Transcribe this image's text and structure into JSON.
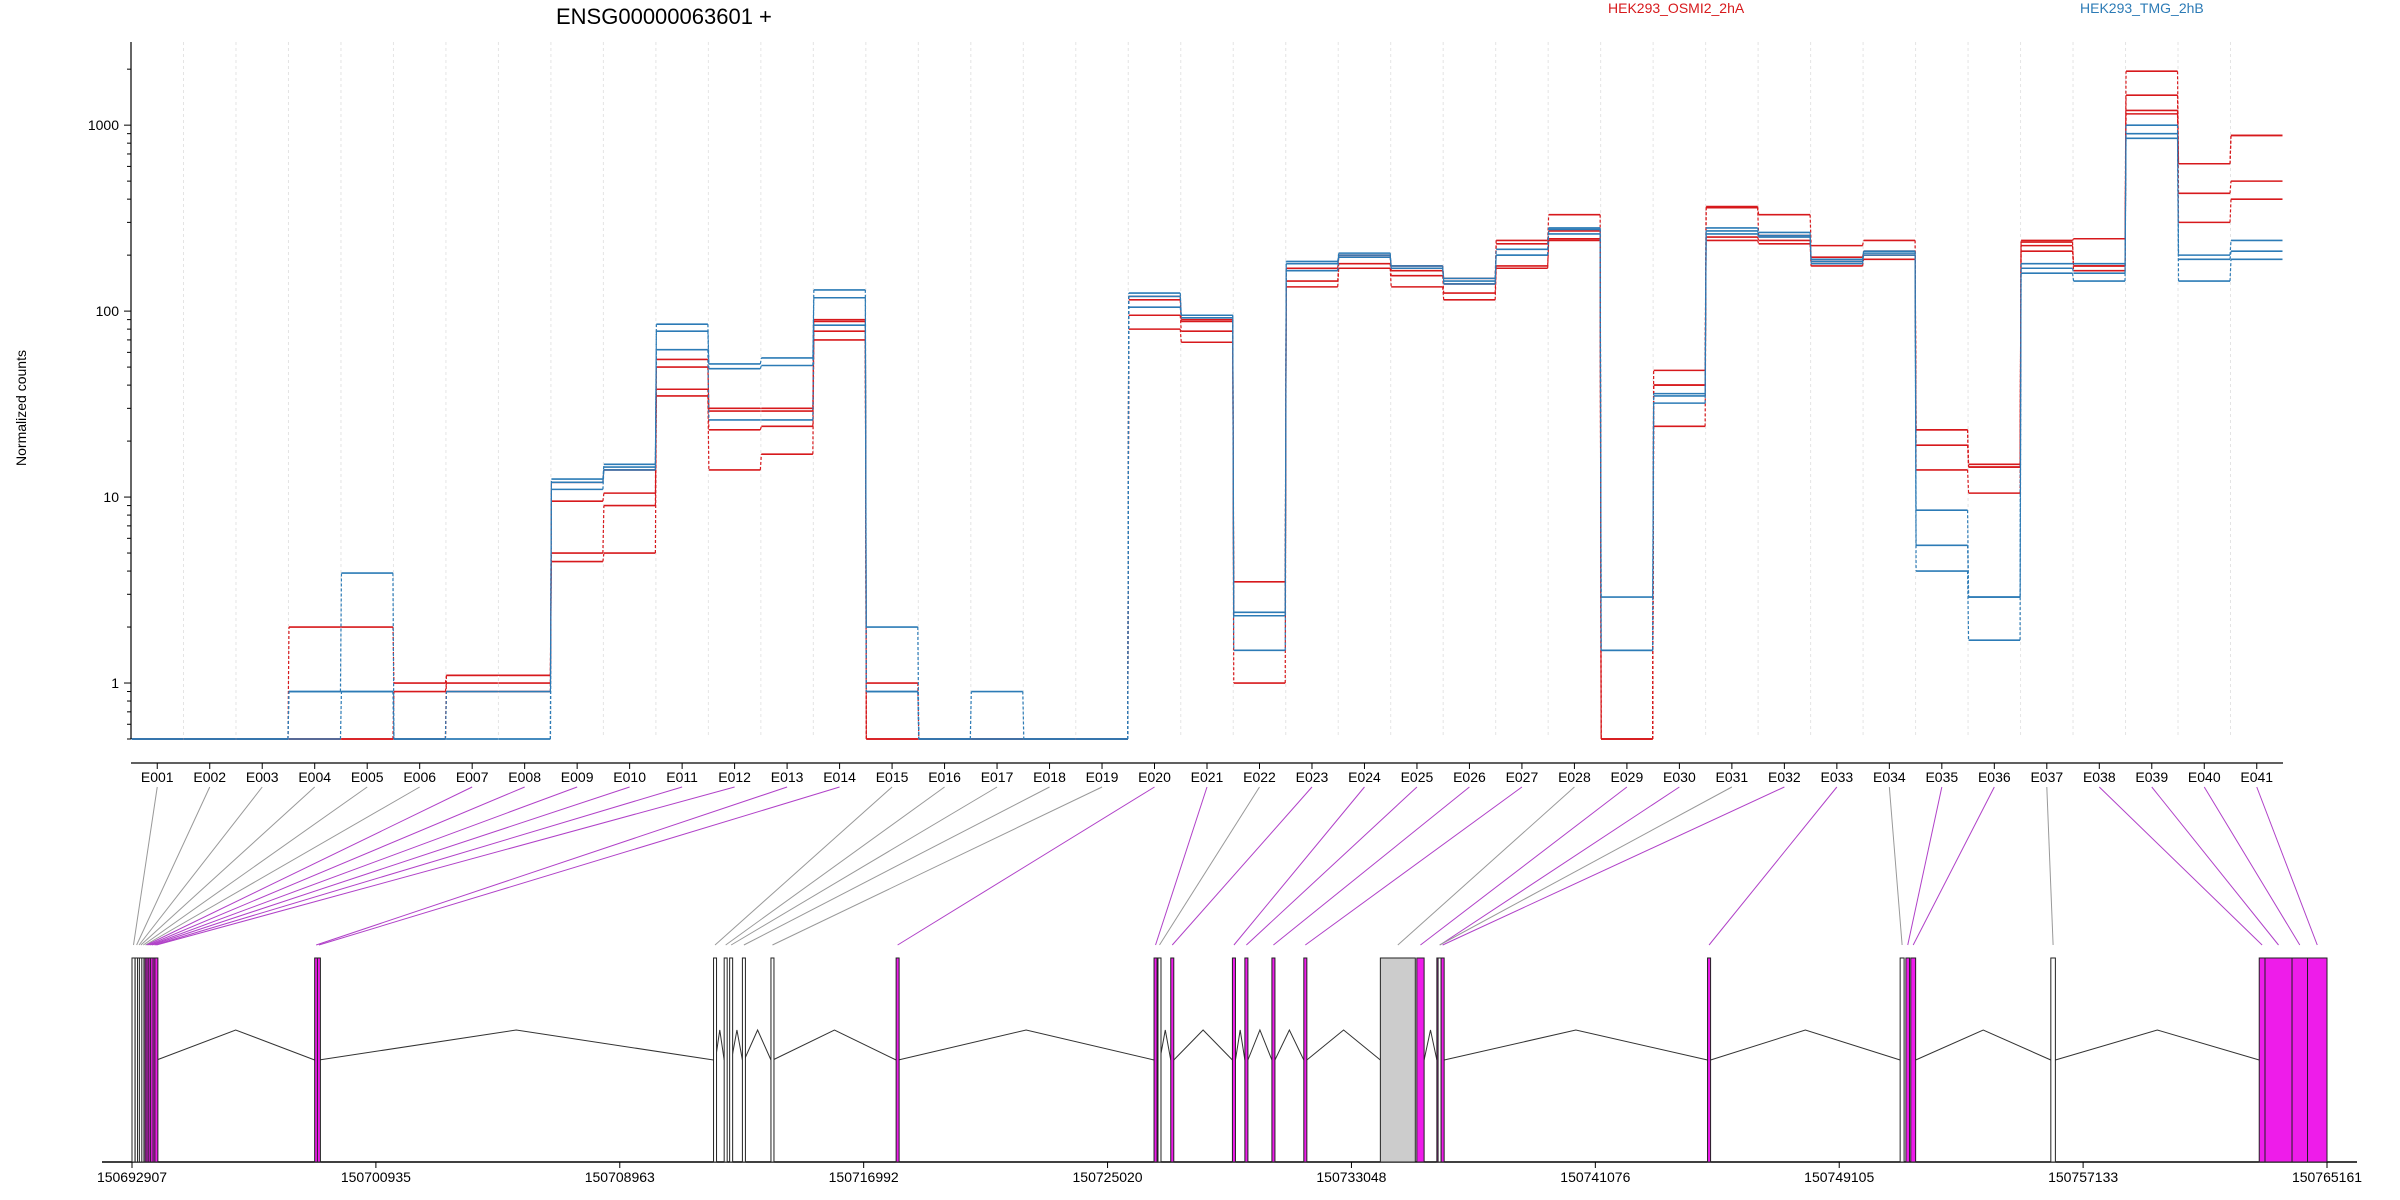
{
  "title": "ENSG00000063601 +",
  "legend": [
    {
      "name": "HEK293_OSMI2_2hA",
      "color": "#d7191c"
    },
    {
      "name": "HEK293_TMG_2hB",
      "color": "#2c7bb6"
    }
  ],
  "coord_labels": [
    "150692907",
    "150700935",
    "150708963",
    "150716992",
    "150725020",
    "150733048",
    "150741076",
    "150749105",
    "150757133",
    "150765161"
  ],
  "chart_data": {
    "type": "line",
    "title": "ENSG00000063601 +",
    "ylabel": "Normalized counts",
    "yscale": "log",
    "yticks": [
      1,
      10,
      100,
      1000
    ],
    "ylim": [
      0.5,
      2800
    ],
    "grid": "vertical dashed",
    "legend_position": "top",
    "categories": [
      "E001",
      "E002",
      "E003",
      "E004",
      "E005",
      "E006",
      "E007",
      "E008",
      "E009",
      "E010",
      "E011",
      "E012",
      "E013",
      "E014",
      "E015",
      "E016",
      "E017",
      "E018",
      "E019",
      "E020",
      "E021",
      "E022",
      "E023",
      "E024",
      "E025",
      "E026",
      "E027",
      "E028",
      "E029",
      "E030",
      "E031",
      "E032",
      "E033",
      "E034",
      "E035",
      "E036",
      "E037",
      "E038",
      "E039",
      "E040",
      "E041"
    ],
    "series": [
      {
        "group": "HEK293_OSMI2_2hA",
        "color": "#d7191c",
        "values": [
          0.5,
          0.5,
          0.5,
          2.0,
          2.0,
          1.0,
          1.1,
          1.1,
          4.5,
          5.0,
          35,
          14,
          17,
          70,
          1.0,
          0.5,
          0.5,
          0.5,
          0.5,
          80,
          68,
          1.0,
          135,
          170,
          135,
          115,
          170,
          240,
          0.5,
          24,
          240,
          230,
          175,
          190,
          14,
          10.5,
          210,
          165,
          1200,
          300,
          400
        ]
      },
      {
        "group": "HEK293_OSMI2_2hA",
        "color": "#d7191c",
        "values": [
          0.5,
          0.5,
          0.5,
          0.5,
          0.5,
          0.9,
          1.0,
          1.0,
          5.0,
          9.0,
          38,
          23,
          24,
          78,
          0.5,
          0.5,
          0.5,
          0.5,
          0.5,
          95,
          78,
          2.3,
          145,
          180,
          155,
          125,
          175,
          245,
          0.5,
          40,
          250,
          240,
          185,
          200,
          19,
          14.5,
          225,
          175,
          1450,
          430,
          500
        ]
      },
      {
        "group": "HEK293_OSMI2_2hA",
        "color": "#d7191c",
        "values": [
          0.5,
          0.5,
          0.5,
          0.5,
          0.5,
          0.5,
          1.1,
          1.1,
          9.5,
          10.5,
          50,
          29,
          29,
          88,
          0.5,
          0.5,
          0.5,
          0.5,
          0.5,
          115,
          88,
          3.5,
          165,
          195,
          165,
          140,
          230,
          270,
          0.5,
          48,
          360,
          255,
          195,
          210,
          23,
          14.5,
          235,
          175,
          1150,
          620,
          880
        ]
      },
      {
        "group": "HEK293_OSMI2_2hA",
        "color": "#d7191c",
        "values": [
          0.5,
          0.5,
          0.5,
          0.5,
          0.5,
          0.5,
          0.9,
          0.9,
          12,
          14,
          55,
          30,
          30,
          90,
          0.5,
          0.5,
          0.5,
          0.5,
          0.5,
          120,
          90,
          2.3,
          170,
          200,
          175,
          150,
          240,
          330,
          0.5,
          40,
          365,
          330,
          225,
          240,
          23,
          15,
          240,
          245,
          1950,
          620,
          880
        ]
      },
      {
        "group": "HEK293_TMG_2hB",
        "color": "#2c7bb6",
        "values": [
          0.5,
          0.5,
          0.5,
          0.9,
          3.9,
          0.5,
          0.5,
          0.5,
          11,
          14,
          78,
          49,
          51,
          118,
          2.0,
          0.5,
          0.9,
          0.5,
          0.5,
          120,
          95,
          1.5,
          180,
          200,
          170,
          150,
          200,
          260,
          2.9,
          32,
          260,
          250,
          180,
          200,
          4.0,
          1.7,
          160,
          145,
          850,
          145,
          190
        ]
      },
      {
        "group": "HEK293_TMG_2hB",
        "color": "#2c7bb6",
        "values": [
          0.5,
          0.5,
          0.5,
          0.9,
          0.9,
          0.5,
          0.9,
          0.9,
          12,
          14.5,
          85,
          52,
          56,
          130,
          0.9,
          0.5,
          0.5,
          0.5,
          0.5,
          125,
          95,
          2.4,
          185,
          205,
          175,
          140,
          215,
          275,
          1.5,
          35,
          270,
          255,
          185,
          205,
          5.5,
          2.9,
          170,
          160,
          900,
          190,
          210
        ]
      },
      {
        "group": "HEK293_TMG_2hB",
        "color": "#2c7bb6",
        "values": [
          0.5,
          0.5,
          0.5,
          0.5,
          0.9,
          0.5,
          0.5,
          0.5,
          12.5,
          15,
          62,
          26,
          26,
          84,
          0.9,
          0.5,
          0.5,
          0.5,
          0.5,
          105,
          92,
          2.3,
          165,
          195,
          170,
          145,
          200,
          280,
          1.5,
          36,
          280,
          265,
          190,
          210,
          8.5,
          2.9,
          180,
          180,
          1000,
          200,
          240
        ]
      }
    ]
  },
  "gene_model": {
    "range": [
      150692907,
      150765161
    ],
    "introns_text": "connected exon model",
    "exons": [
      {
        "id": "E001",
        "start": 150692907,
        "end": 150692990,
        "tested": false
      },
      {
        "id": "E002",
        "start": 150693010,
        "end": 150693060,
        "tested": false
      },
      {
        "id": "E003",
        "start": 150693090,
        "end": 150693110,
        "tested": false
      },
      {
        "id": "E004",
        "start": 150693150,
        "end": 150693200,
        "tested": false
      },
      {
        "id": "E005",
        "start": 150693230,
        "end": 150693260,
        "tested": false
      },
      {
        "id": "E006",
        "start": 150693300,
        "end": 150693330,
        "tested": false
      },
      {
        "id": "E007",
        "start": 150693340,
        "end": 150693370,
        "tested": true
      },
      {
        "id": "E008",
        "start": 150693400,
        "end": 150693430,
        "tested": true
      },
      {
        "id": "E009",
        "start": 150693460,
        "end": 150693500,
        "tested": true
      },
      {
        "id": "E010",
        "start": 150693520,
        "end": 150693580,
        "tested": true
      },
      {
        "id": "E011",
        "start": 150693600,
        "end": 150693650,
        "tested": true
      },
      {
        "id": "E012",
        "start": 150693660,
        "end": 150693720,
        "tested": true
      },
      {
        "id": "E013",
        "start": 150698920,
        "end": 150699000,
        "tested": true
      },
      {
        "id": "E014",
        "start": 150699010,
        "end": 150699060,
        "tested": true
      },
      {
        "id": "E015",
        "start": 150712050,
        "end": 150712110,
        "tested": false
      },
      {
        "id": "E016",
        "start": 150712400,
        "end": 150712460,
        "tested": false
      },
      {
        "id": "E017",
        "start": 150712580,
        "end": 150712640,
        "tested": false
      },
      {
        "id": "E018",
        "start": 150713000,
        "end": 150713060,
        "tested": false
      },
      {
        "id": "E019",
        "start": 150713940,
        "end": 150714000,
        "tested": false
      },
      {
        "id": "E020",
        "start": 150718060,
        "end": 150718130,
        "tested": true
      },
      {
        "id": "E021",
        "start": 150726550,
        "end": 150726620,
        "tested": true
      },
      {
        "id": "E022",
        "start": 150726680,
        "end": 150726740,
        "tested": false
      },
      {
        "id": "E023",
        "start": 150727100,
        "end": 150727200,
        "tested": true
      },
      {
        "id": "E024",
        "start": 150729130,
        "end": 150729230,
        "tested": true
      },
      {
        "id": "E025",
        "start": 150729540,
        "end": 150729640,
        "tested": true
      },
      {
        "id": "E026",
        "start": 150730430,
        "end": 150730530,
        "tested": true
      },
      {
        "id": "E027",
        "start": 150731480,
        "end": 150731580,
        "tested": true
      },
      {
        "id": "E028",
        "start": 150734000,
        "end": 150735150,
        "tested": false
      },
      {
        "id": "E029",
        "start": 150735200,
        "end": 150735440,
        "tested": true
      },
      {
        "id": "E030",
        "start": 150735860,
        "end": 150736060,
        "tested": true
      },
      {
        "id": "E031",
        "start": 150735900,
        "end": 150736000,
        "tested": false
      },
      {
        "id": "E032",
        "start": 150736000,
        "end": 150736100,
        "tested": true
      },
      {
        "id": "E033",
        "start": 150744770,
        "end": 150744870,
        "tested": true
      },
      {
        "id": "E034",
        "start": 150751110,
        "end": 150751240,
        "tested": false
      },
      {
        "id": "E035",
        "start": 150751300,
        "end": 150751420,
        "tested": true
      },
      {
        "id": "E036",
        "start": 150751460,
        "end": 150751620,
        "tested": true
      },
      {
        "id": "E037",
        "start": 150756070,
        "end": 150756220,
        "tested": false
      },
      {
        "id": "E038",
        "start": 150762930,
        "end": 150763120,
        "tested": true
      },
      {
        "id": "E039",
        "start": 150763120,
        "end": 150764010,
        "tested": true
      },
      {
        "id": "E040",
        "start": 150764010,
        "end": 150764520,
        "tested": true
      },
      {
        "id": "E041",
        "start": 150764520,
        "end": 150765161,
        "tested": true
      }
    ]
  }
}
